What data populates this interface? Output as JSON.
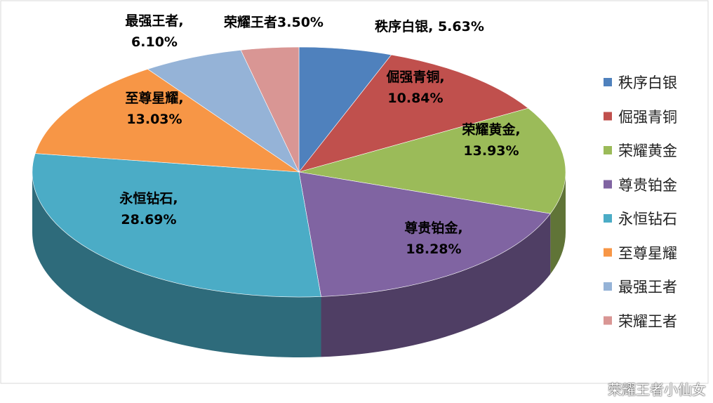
{
  "chart_data": {
    "type": "pie3d",
    "categories": [
      "秩序白银",
      "倔强青铜",
      "荣耀黄金",
      "尊贵铂金",
      "永恒钻石",
      "至尊星耀",
      "最强王者",
      "荣耀王者"
    ],
    "values": [
      5.63,
      10.84,
      13.93,
      18.28,
      28.69,
      13.03,
      6.1,
      3.5
    ],
    "value_labels": [
      "秩序白银, 5.63%",
      "倔强青铜, 10.84%",
      "荣耀黄金, 13.93%",
      "尊贵铂金, 18.28%",
      "永恒钻石, 28.69%",
      "至尊星耀, 13.03%",
      "最强王者, 6.10%",
      "荣耀王者3.50%"
    ],
    "colors": [
      "#4f81bd",
      "#c0504d",
      "#9bbb59",
      "#8064a2",
      "#4bacc6",
      "#f79646",
      "#95b3d7",
      "#d99694"
    ],
    "legend": "right"
  },
  "watermark": "荣耀王者小仙女"
}
